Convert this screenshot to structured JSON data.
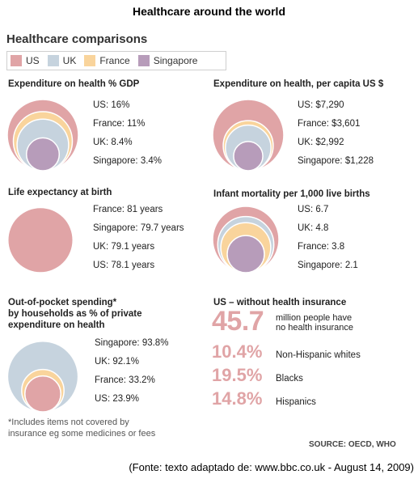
{
  "header": {
    "title": "Healthcare around the world",
    "subtitle": "Healthcare comparisons"
  },
  "legend": [
    {
      "label": "US",
      "color": "#e0a4a6"
    },
    {
      "label": "UK",
      "color": "#c6d3de"
    },
    {
      "label": "France",
      "color": "#f9d49c"
    },
    {
      "label": "Singapore",
      "color": "#b79cba"
    }
  ],
  "chart_data": [
    {
      "type": "nested-circles",
      "title": "Expenditure on health % GDP",
      "labels": [
        "US: 16%",
        "France: 11%",
        "UK: 8.4%",
        "Singapore: 3.4%"
      ],
      "series": [
        {
          "name": "US",
          "value": 16
        },
        {
          "name": "France",
          "value": 11
        },
        {
          "name": "UK",
          "value": 8.4
        },
        {
          "name": "Singapore",
          "value": 3.4
        }
      ]
    },
    {
      "type": "nested-circles",
      "title": "Expenditure on health, per capita US $",
      "labels": [
        "US: $7,290",
        "France: $3,601",
        "UK: $2,992",
        "Singapore: $1,228"
      ],
      "series": [
        {
          "name": "US",
          "value": 7290
        },
        {
          "name": "France",
          "value": 3601
        },
        {
          "name": "UK",
          "value": 2992
        },
        {
          "name": "Singapore",
          "value": 1228
        }
      ]
    },
    {
      "type": "nested-circles",
      "title": "Life expectancy at birth",
      "labels": [
        "France: 81 years",
        "Singapore: 79.7 years",
        "UK: 79.1 years",
        "US: 78.1 years"
      ],
      "series": [
        {
          "name": "France",
          "value": 81
        },
        {
          "name": "Singapore",
          "value": 79.7
        },
        {
          "name": "UK",
          "value": 79.1
        },
        {
          "name": "US",
          "value": 78.1
        }
      ]
    },
    {
      "type": "nested-circles",
      "title": "Infant mortality per 1,000 live births",
      "labels": [
        "US: 6.7",
        "UK: 4.8",
        "France: 3.8",
        "Singapore: 2.1"
      ],
      "series": [
        {
          "name": "US",
          "value": 6.7
        },
        {
          "name": "UK",
          "value": 4.8
        },
        {
          "name": "France",
          "value": 3.8
        },
        {
          "name": "Singapore",
          "value": 2.1
        }
      ]
    },
    {
      "type": "nested-circles",
      "title": "Out-of-pocket spending* by households as % of private expenditure on health",
      "title_lines": [
        "Out-of-pocket spending*",
        "by households as % of private",
        "expenditure on health"
      ],
      "labels": [
        "Singapore: 93.8%",
        "UK: 92.1%",
        "France: 33.2%",
        "US: 23.9%"
      ],
      "series": [
        {
          "name": "Singapore",
          "value": 93.8
        },
        {
          "name": "UK",
          "value": 92.1
        },
        {
          "name": "France",
          "value": 33.2
        },
        {
          "name": "US",
          "value": 23.9
        }
      ]
    }
  ],
  "uninsured": {
    "title": "US – without health insurance",
    "headline_value": "45.7",
    "headline_text_lines": [
      "million people have",
      "no health insurance"
    ],
    "rows": [
      {
        "value": "10.4%",
        "label": "Non-Hispanic whites"
      },
      {
        "value": "19.5%",
        "label": "Blacks"
      },
      {
        "value": "14.8%",
        "label": "Hispanics"
      }
    ]
  },
  "footnote_lines": [
    "*Includes items not covered by",
    "insurance eg some medicines or fees"
  ],
  "source": "SOURCE: OECD, WHO",
  "credit": "(Fonte: texto adaptado de: www.bbc.co.uk - August 14, 2009)"
}
